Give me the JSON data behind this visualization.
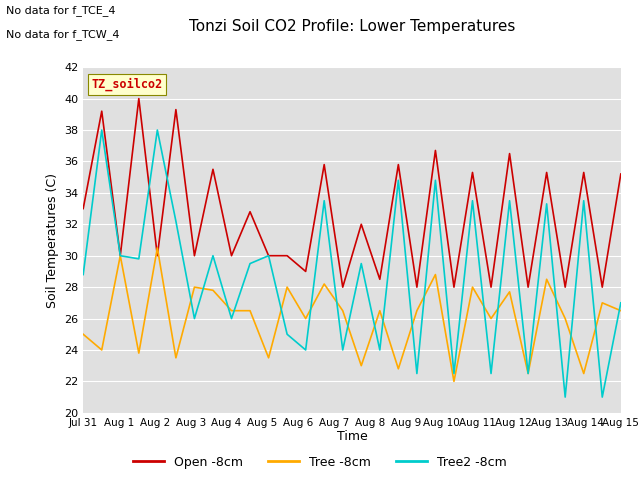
{
  "title": "Tonzi Soil CO2 Profile: Lower Temperatures",
  "xlabel": "Time",
  "ylabel": "Soil Temperatures (C)",
  "annotation_lines": [
    "No data for f_TCE_4",
    "No data for f_TCW_4"
  ],
  "inner_label": "TZ_soilco2",
  "ylim": [
    20,
    42
  ],
  "yticks": [
    20,
    22,
    24,
    26,
    28,
    30,
    32,
    34,
    36,
    38,
    40,
    42
  ],
  "xtick_labels": [
    "Jul 31",
    "Aug 1",
    "Aug 2",
    "Aug 3",
    "Aug 4",
    "Aug 5",
    "Aug 6",
    "Aug 7",
    "Aug 8",
    "Aug 9",
    "Aug 10",
    "Aug 11",
    "Aug 12",
    "Aug 13",
    "Aug 14",
    "Aug 15"
  ],
  "bg_color": "#ffffff",
  "plot_bg_color": "#e0e0e0",
  "line_colors": [
    "#cc0000",
    "#ffaa00",
    "#00cccc"
  ],
  "legend_labels": [
    "Open -8cm",
    "Tree -8cm",
    "Tree2 -8cm"
  ],
  "inner_label_bg": "#ffffcc",
  "inner_label_color": "#cc0000",
  "open_8cm": [
    33.0,
    39.2,
    30.0,
    40.0,
    30.0,
    39.3,
    30.0,
    35.5,
    30.0,
    32.8,
    30.0,
    30.0,
    29.0,
    35.8,
    28.0,
    32.0,
    28.5,
    35.8,
    28.0,
    36.7,
    28.0,
    35.3,
    28.0,
    36.5,
    28.0,
    35.3,
    28.0,
    35.3,
    28.0,
    35.2
  ],
  "tree_8cm": [
    25.0,
    24.0,
    30.0,
    23.8,
    30.5,
    23.5,
    28.0,
    27.8,
    26.5,
    26.5,
    23.5,
    28.0,
    26.0,
    28.2,
    26.5,
    23.0,
    26.5,
    22.8,
    26.5,
    28.8,
    22.0,
    28.0,
    26.0,
    27.7,
    22.5,
    28.5,
    26.0,
    22.5,
    27.0,
    26.5
  ],
  "tree2_8cm": [
    28.8,
    38.0,
    30.0,
    29.8,
    38.0,
    32.2,
    26.0,
    30.0,
    26.0,
    29.5,
    30.0,
    25.0,
    24.0,
    33.5,
    24.0,
    29.5,
    24.0,
    34.8,
    22.5,
    34.8,
    22.5,
    33.5,
    22.5,
    33.5,
    22.5,
    33.3,
    21.0,
    33.5,
    21.0,
    27.0
  ]
}
